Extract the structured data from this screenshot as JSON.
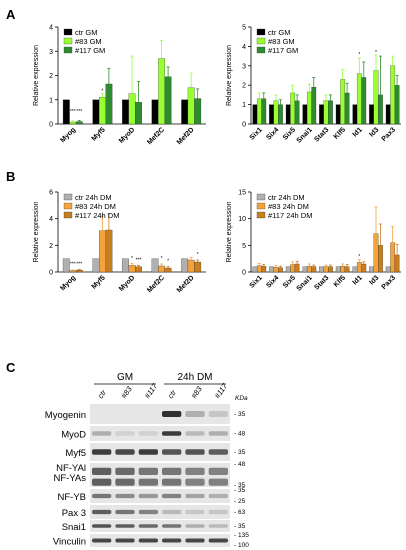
{
  "panel_labels": [
    "A",
    "B",
    "C"
  ],
  "chart_data": [
    {
      "id": "A-left",
      "type": "bar",
      "categories": [
        "Myog",
        "Myf5",
        "MyoD",
        "Mef2C",
        "Mef2D"
      ],
      "ylabel": "Relative expression",
      "ylim": [
        0,
        4
      ],
      "yticks": [
        "0",
        "1",
        "2",
        "3",
        "4"
      ],
      "legend": "top-left",
      "series": [
        {
          "name": "ctr GM",
          "color": "#000000",
          "values": [
            1,
            1,
            1,
            1,
            1
          ],
          "err": [
            0,
            0,
            0,
            0,
            0
          ]
        },
        {
          "name": "#83 GM",
          "color": "#99ff33",
          "values": [
            0.08,
            1.1,
            1.25,
            2.7,
            1.5
          ],
          "err": [
            0.05,
            0.15,
            1.55,
            0.75,
            0.6
          ]
        },
        {
          "name": "#117 GM",
          "color": "#2e8b2e",
          "values": [
            0.1,
            1.65,
            0.9,
            1.95,
            1.05
          ],
          "err": [
            0.05,
            0.65,
            0.85,
            0.4,
            0.4
          ]
        }
      ],
      "annotations": [
        "***",
        "***",
        "*"
      ]
    },
    {
      "id": "A-right",
      "type": "bar",
      "categories": [
        "Six1",
        "Six4",
        "Six5",
        "Snai1",
        "Stat3",
        "Klf5",
        "Id1",
        "Id3",
        "Pax3"
      ],
      "ylabel": "Relative expression",
      "ylim": [
        0,
        5
      ],
      "yticks": [
        "0",
        "1",
        "2",
        "3",
        "4",
        "5"
      ],
      "legend": "top-left",
      "series": [
        {
          "name": "ctr GM",
          "color": "#000000",
          "values": [
            1,
            1,
            1,
            1,
            1,
            1,
            1,
            1,
            1
          ],
          "err": [
            0,
            0,
            0,
            0,
            0,
            0,
            0,
            0,
            0
          ]
        },
        {
          "name": "#83 GM",
          "color": "#99ff33",
          "values": [
            1.3,
            1.2,
            1.6,
            1.65,
            1.2,
            2.3,
            2.6,
            2.75,
            3.0
          ],
          "err": [
            0.3,
            0.3,
            0.4,
            0.4,
            0.3,
            0.5,
            0.8,
            0.8,
            0.5
          ]
        },
        {
          "name": "#117 GM",
          "color": "#2e8b2e",
          "values": [
            1.3,
            1.0,
            1.2,
            1.9,
            1.2,
            1.6,
            2.4,
            1.5,
            2.0
          ],
          "err": [
            0.3,
            0.25,
            0.3,
            0.5,
            0.3,
            0.5,
            0.8,
            2.0,
            0.5
          ]
        }
      ],
      "annotations": [
        "*",
        "*"
      ]
    },
    {
      "id": "B-left",
      "type": "bar",
      "categories": [
        "Myog",
        "Myf5",
        "MyoD",
        "Mef2C",
        "Mef2D"
      ],
      "ylabel": "Relative expression",
      "ylim": [
        0,
        6
      ],
      "yticks": [
        "0",
        "2",
        "4",
        "6"
      ],
      "legend": "top-left",
      "series": [
        {
          "name": "ctr 24h DM",
          "color": "#b0b0b0",
          "values": [
            1,
            1,
            1,
            1,
            1
          ],
          "err": [
            0,
            0,
            0,
            0,
            0
          ]
        },
        {
          "name": "#83 24h DM",
          "color": "#f4a33c",
          "values": [
            0.1,
            3.1,
            0.5,
            0.45,
            0.9
          ],
          "err": [
            0.05,
            1.1,
            0.15,
            0.15,
            0.2
          ]
        },
        {
          "name": "#117 24h DM",
          "color": "#c87e1e",
          "values": [
            0.15,
            3.15,
            0.4,
            0.3,
            0.75
          ],
          "err": [
            0.05,
            1.2,
            0.1,
            0.1,
            0.15
          ]
        }
      ],
      "annotations": [
        "***",
        "***",
        "*",
        "***",
        "*",
        "*",
        "*"
      ]
    },
    {
      "id": "B-right",
      "type": "bar",
      "categories": [
        "Six1",
        "Six4",
        "Six5",
        "Snai1",
        "Stat3",
        "Klf5",
        "Id1",
        "Id3",
        "Pax3"
      ],
      "ylabel": "Relative expression",
      "ylim": [
        0,
        15
      ],
      "yticks": [
        "0",
        "5",
        "10",
        "15"
      ],
      "legend": "top-left",
      "series": [
        {
          "name": "ctr 24h DM",
          "color": "#b0b0b0",
          "values": [
            1,
            1,
            1,
            1,
            1,
            1,
            1,
            1,
            1
          ],
          "err": [
            0,
            0,
            0,
            0,
            0,
            0,
            0,
            0,
            0
          ]
        },
        {
          "name": "#83 24h DM",
          "color": "#f4a33c",
          "values": [
            1.2,
            0.9,
            1.4,
            1.1,
            1.0,
            1.1,
            1.8,
            7.2,
            5.5
          ],
          "err": [
            0.4,
            0.3,
            0.5,
            0.4,
            0.3,
            0.4,
            0.5,
            5.0,
            3.0
          ]
        },
        {
          "name": "#117 24h DM",
          "color": "#c87e1e",
          "values": [
            1.1,
            0.8,
            1.5,
            1.0,
            1.0,
            1.0,
            1.5,
            5.0,
            3.2
          ],
          "err": [
            0.3,
            0.3,
            0.5,
            0.3,
            0.3,
            0.4,
            0.4,
            4.0,
            2.0
          ]
        }
      ],
      "annotations": [
        "*"
      ]
    }
  ],
  "blot": {
    "groups": [
      "GM",
      "24h DM"
    ],
    "lanes": [
      "ctr",
      "#83",
      "#117",
      "ctr",
      "#83",
      "#117"
    ],
    "kda_header": "KDa",
    "rows": [
      {
        "label": "Myogenin",
        "markers": [
          "35"
        ]
      },
      {
        "label": "MyoD",
        "markers": [
          "48"
        ]
      },
      {
        "label": "Myf5",
        "markers": [
          "35"
        ]
      },
      {
        "label": "NF-YAl\nNF-YAs",
        "markers": [
          "48",
          "35"
        ]
      },
      {
        "label": "NF-YB",
        "markers": [
          "35",
          "25"
        ]
      },
      {
        "label": "Pax 3",
        "markers": [
          "63"
        ]
      },
      {
        "label": "Snai1",
        "markers": [
          "35"
        ]
      },
      {
        "label": "Vinculin",
        "markers": [
          "135",
          "100"
        ]
      }
    ]
  }
}
